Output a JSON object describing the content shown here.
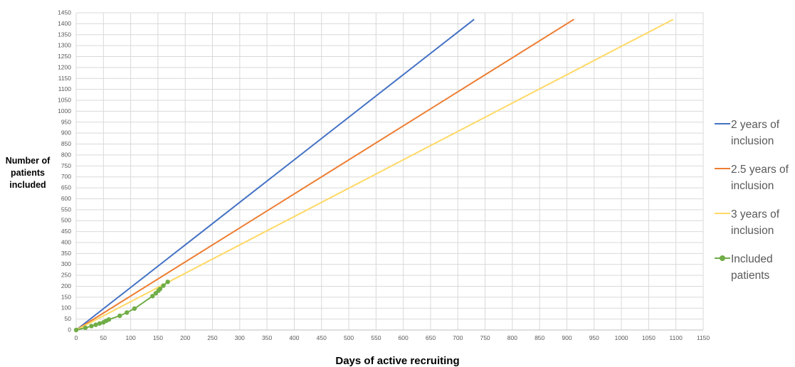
{
  "chart_data": {
    "type": "line",
    "xlabel": "Days of active recruiting",
    "ylabel": "Number of patients included",
    "xlim": [
      0,
      1150
    ],
    "ylim": [
      0,
      1450
    ],
    "xticks": [
      "0",
      "50",
      "100",
      "150",
      "200",
      "250",
      "300",
      "350",
      "400",
      "450",
      "500",
      "550",
      "600",
      "650",
      "700",
      "750",
      "800",
      "850",
      "900",
      "950",
      "1000",
      "1050",
      "1100",
      "1150"
    ],
    "yticks": [
      "0",
      "50",
      "100",
      "150",
      "200",
      "250",
      "300",
      "350",
      "400",
      "450",
      "500",
      "550",
      "600",
      "650",
      "700",
      "750",
      "800",
      "850",
      "900",
      "950",
      "1000",
      "1050",
      "1100",
      "1150",
      "1200",
      "1250",
      "1300",
      "1350",
      "1400",
      "1450"
    ],
    "grid": true,
    "legend_position": "right",
    "series": [
      {
        "name": "2 years of inclusion",
        "color": "#4472c4",
        "markers": false,
        "points": [
          [
            0,
            0
          ],
          [
            730,
            1420
          ]
        ]
      },
      {
        "name": "2.5 years of inclusion",
        "color": "#ed7d31",
        "markers": false,
        "points": [
          [
            0,
            0
          ],
          [
            913,
            1420
          ]
        ]
      },
      {
        "name": "3 years of inclusion",
        "color": "#ffd966",
        "markers": false,
        "points": [
          [
            0,
            0
          ],
          [
            1095,
            1420
          ]
        ]
      },
      {
        "name": "Included patients",
        "color": "#70ad47",
        "markers": true,
        "points": [
          [
            0,
            0
          ],
          [
            17,
            10
          ],
          [
            28,
            18
          ],
          [
            36,
            24
          ],
          [
            43,
            30
          ],
          [
            50,
            35
          ],
          [
            55,
            42
          ],
          [
            60,
            48
          ],
          [
            80,
            65
          ],
          [
            93,
            80
          ],
          [
            107,
            98
          ],
          [
            140,
            155
          ],
          [
            146,
            168
          ],
          [
            151,
            180
          ],
          [
            154,
            188
          ],
          [
            160,
            203
          ],
          [
            168,
            220
          ]
        ]
      }
    ]
  }
}
